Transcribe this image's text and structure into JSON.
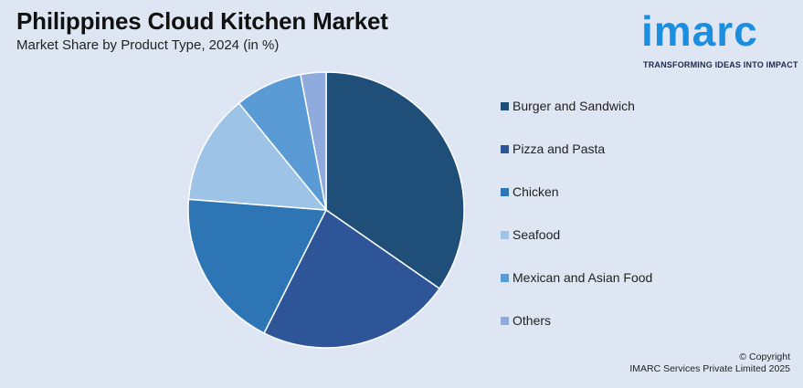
{
  "header": {
    "title": "Philippines Cloud Kitchen Market",
    "subtitle": "Market Share by Product Type, 2024 (in %)"
  },
  "logo": {
    "wordmark": "imarc",
    "tagline": "TRANSFORMING IDEAS INTO IMPACT",
    "color": "#1b8ee0"
  },
  "chart_data": {
    "type": "pie",
    "title": "Philippines Cloud Kitchen Market",
    "subtitle": "Market Share by Product Type, 2024 (in %)",
    "categories": [
      "Burger and Sandwich",
      "Pizza and Pasta",
      "Chicken",
      "Seafood",
      "Mexican and Asian Food",
      "Others"
    ],
    "values": [
      35,
      23,
      19,
      13,
      8,
      3
    ],
    "colors": [
      "#1f4e79",
      "#2e5597",
      "#2e75b6",
      "#9dc3e6",
      "#5b9bd5",
      "#8faadc"
    ],
    "legend": "right"
  },
  "footer": {
    "copyright_line1": "© Copyright",
    "copyright_line2": "IMARC Services Private Limited 2025"
  }
}
